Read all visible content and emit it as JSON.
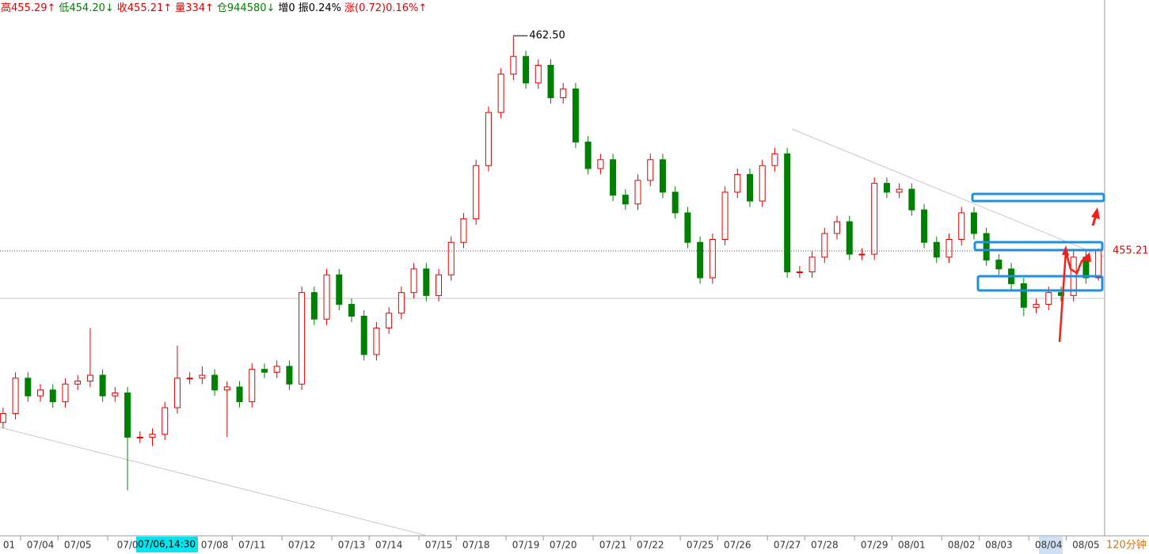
{
  "chart_data": {
    "type": "candlestick",
    "header": [
      {
        "text": "高455.29↑",
        "color": "#e00000"
      },
      {
        "text": "低454.20↓",
        "color": "#008000"
      },
      {
        "text": "收455.21↑",
        "color": "#e00000"
      },
      {
        "text": "量334↑",
        "color": "#e00000"
      },
      {
        "text": "仓944580↓",
        "color": "#008000"
      },
      {
        "text": "增0",
        "color": "#000000"
      },
      {
        "text": "振0.24%",
        "color": "#000000"
      },
      {
        "text": "涨(0.72)0.16%↑",
        "color": "#e00000"
      }
    ],
    "period": "120分钟",
    "cursor_label": "07/06,14:30",
    "max_label": "462.50",
    "up_color": "#e00000",
    "down_color": "#008000",
    "ylim": [
      445.56,
      463.71
    ],
    "categories": [
      "01",
      null,
      null,
      "07/04",
      null,
      null,
      "07/05",
      null,
      null,
      null,
      "07/0",
      null,
      null,
      null,
      null,
      null,
      null,
      "07/08",
      null,
      null,
      "07/11",
      null,
      null,
      null,
      "07/12",
      null,
      null,
      null,
      "07/13",
      null,
      null,
      "07/14",
      null,
      null,
      null,
      "07/15",
      null,
      null,
      "07/18",
      null,
      null,
      null,
      "07/19",
      null,
      null,
      "07/20",
      null,
      null,
      null,
      "07/21",
      null,
      null,
      "07/22",
      null,
      null,
      null,
      "07/25",
      null,
      null,
      "07/26",
      null,
      null,
      null,
      "07/27",
      null,
      null,
      "07/28",
      null,
      null,
      null,
      "07/29",
      null,
      null,
      "08/01",
      null,
      null,
      null,
      "08/02",
      null,
      null,
      "08/03",
      null,
      null,
      null,
      "08/04",
      null,
      null,
      "08/05",
      null
    ],
    "open": [
      449.4,
      449.7,
      450.9,
      450.3,
      450.5,
      450.1,
      450.7,
      450.8,
      451.0,
      450.3,
      450.4,
      448.9,
      448.9,
      449.0,
      449.9,
      450.9,
      450.9,
      451.0,
      450.5,
      450.6,
      450.1,
      451.2,
      451.1,
      451.3,
      450.7,
      453.8,
      452.9,
      454.4,
      453.4,
      453.0,
      451.7,
      452.6,
      453.1,
      453.8,
      454.6,
      453.7,
      454.4,
      455.5,
      456.3,
      458.1,
      459.9,
      461.2,
      461.8,
      460.9,
      461.5,
      460.4,
      460.7,
      458.9,
      458.0,
      458.3,
      457.1,
      456.8,
      457.6,
      458.3,
      457.2,
      456.5,
      455.5,
      454.3,
      455.6,
      457.2,
      457.8,
      456.9,
      458.1,
      458.5,
      454.5,
      454.5,
      455.0,
      455.8,
      456.2,
      455.1,
      455.1,
      457.5,
      457.2,
      457.3,
      456.6,
      455.5,
      455.0,
      455.6,
      456.5,
      455.8,
      454.9,
      454.6,
      454.1,
      453.3,
      453.4,
      453.8,
      453.7,
      455.0,
      454.3
    ],
    "high": [
      449.9,
      451.1,
      451.1,
      450.7,
      450.7,
      450.9,
      451.0,
      452.6,
      451.2,
      450.6,
      450.6,
      449.1,
      449.2,
      450.1,
      452.0,
      451.1,
      451.3,
      451.2,
      450.8,
      450.8,
      451.4,
      451.4,
      451.5,
      451.5,
      454.0,
      454.0,
      454.6,
      454.6,
      453.6,
      453.2,
      452.8,
      453.3,
      454.0,
      454.8,
      454.8,
      454.6,
      455.7,
      456.5,
      458.3,
      460.1,
      461.4,
      462.5,
      462.0,
      461.7,
      461.7,
      460.9,
      460.9,
      459.1,
      458.5,
      458.5,
      457.3,
      457.8,
      458.5,
      458.5,
      457.4,
      456.7,
      455.7,
      455.8,
      457.4,
      458.0,
      458.0,
      458.3,
      458.7,
      458.7,
      454.7,
      455.2,
      456.0,
      456.4,
      456.4,
      455.3,
      457.7,
      457.7,
      457.5,
      457.5,
      456.8,
      455.7,
      455.8,
      456.7,
      456.7,
      456.0,
      455.1,
      454.8,
      454.3,
      453.6,
      454.0,
      454.0,
      455.2,
      455.2,
      455.29
    ],
    "low": [
      449.2,
      449.5,
      450.1,
      450.1,
      449.9,
      449.9,
      450.5,
      450.6,
      450.1,
      450.1,
      447.1,
      448.7,
      448.6,
      448.8,
      449.7,
      450.7,
      450.7,
      450.3,
      448.9,
      449.9,
      449.9,
      450.9,
      450.9,
      450.5,
      450.5,
      452.7,
      452.7,
      453.2,
      452.8,
      451.5,
      451.5,
      452.4,
      452.9,
      453.6,
      453.5,
      453.5,
      454.2,
      455.3,
      456.1,
      457.9,
      459.7,
      461.0,
      460.7,
      460.7,
      460.2,
      460.2,
      458.7,
      457.8,
      457.8,
      456.9,
      456.6,
      456.6,
      457.4,
      457.0,
      456.3,
      455.3,
      454.1,
      454.1,
      455.4,
      457.0,
      456.7,
      456.7,
      457.9,
      454.3,
      454.3,
      454.3,
      454.8,
      455.6,
      454.9,
      454.9,
      454.9,
      457.0,
      457.0,
      456.4,
      455.3,
      454.8,
      454.8,
      455.4,
      455.6,
      454.7,
      454.4,
      453.9,
      453.0,
      453.1,
      453.2,
      453.5,
      453.5,
      454.1,
      454.2
    ],
    "close": [
      449.7,
      450.9,
      450.3,
      450.5,
      450.1,
      450.7,
      450.8,
      451.0,
      450.3,
      450.4,
      448.9,
      448.9,
      449.0,
      449.9,
      450.9,
      450.9,
      451.0,
      450.5,
      450.6,
      450.1,
      451.2,
      451.1,
      451.3,
      450.7,
      453.8,
      452.9,
      454.4,
      453.4,
      453.0,
      451.7,
      452.6,
      453.1,
      453.8,
      454.6,
      453.7,
      454.4,
      455.5,
      456.3,
      458.1,
      459.9,
      461.2,
      461.8,
      460.9,
      461.5,
      460.4,
      460.7,
      458.9,
      458.0,
      458.3,
      457.1,
      456.8,
      457.6,
      458.3,
      457.2,
      456.5,
      455.5,
      454.3,
      455.6,
      457.2,
      457.8,
      456.9,
      458.1,
      458.5,
      454.5,
      454.5,
      455.0,
      455.8,
      456.2,
      455.1,
      455.1,
      457.5,
      457.2,
      457.3,
      456.6,
      455.5,
      455.0,
      455.6,
      456.5,
      455.8,
      454.9,
      454.6,
      454.1,
      453.3,
      453.4,
      453.8,
      453.7,
      455.0,
      454.3,
      455.21
    ]
  }
}
